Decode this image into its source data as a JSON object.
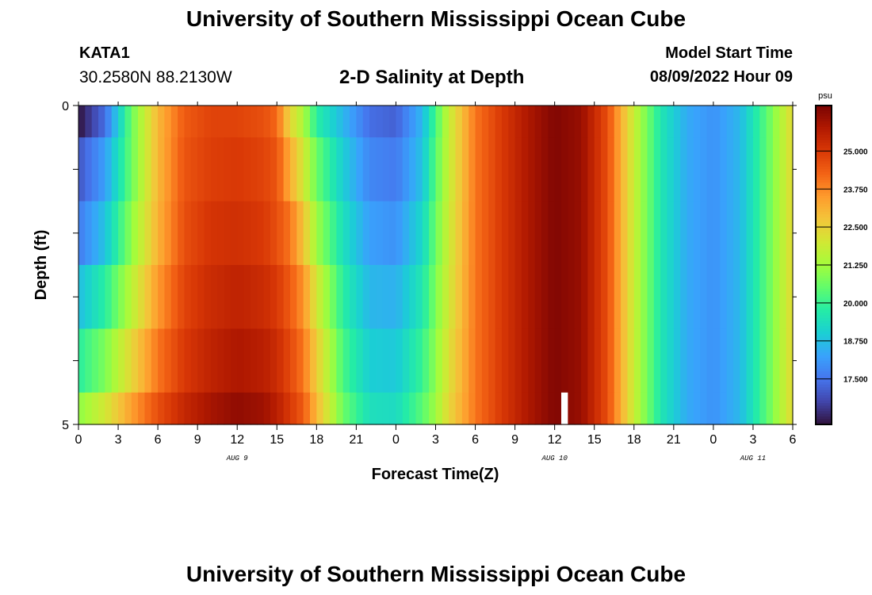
{
  "header": {
    "title": "University of Southern Mississippi Ocean Cube",
    "station": "KATA1",
    "coords": "30.2580N  88.2130W",
    "subtitle": "2-D Salinity at Depth",
    "model_start_label": "Model Start Time",
    "model_start_value": "08/09/2022 Hour 09"
  },
  "footer": {
    "title": "University of Southern Mississippi Ocean Cube"
  },
  "chart_data": {
    "type": "heatmap",
    "title": "2-D Salinity at Depth",
    "xlabel": "Forecast Time(Z)",
    "ylabel": "Depth (ft)",
    "x_range_hours": [
      0,
      54
    ],
    "x_tick_labels": [
      "0",
      "3",
      "6",
      "9",
      "12",
      "15",
      "18",
      "21",
      "0",
      "3",
      "6",
      "9",
      "12",
      "15",
      "18",
      "21",
      "0",
      "3",
      "6"
    ],
    "x_day_labels": [
      {
        "label": "AUG 9",
        "at_hour": 12
      },
      {
        "label": "AUG 10",
        "at_hour": 36
      },
      {
        "label": "AUG 11",
        "at_hour": 51
      }
    ],
    "y_range": [
      0,
      5
    ],
    "y_tick_labels": [
      "0",
      "5"
    ],
    "depth_layers": [
      {
        "from": 0,
        "to": 0.5
      },
      {
        "from": 0.5,
        "to": 1.5
      },
      {
        "from": 1.5,
        "to": 2.5
      },
      {
        "from": 2.5,
        "to": 3.5
      },
      {
        "from": 3.5,
        "to": 4.5
      },
      {
        "from": 4.5,
        "to": 5
      }
    ],
    "salinity_keyframes": [
      {
        "hour": 0,
        "layers": [
          16.0,
          17.0,
          17.6,
          18.7,
          19.8,
          21.0
        ]
      },
      {
        "hour": 2,
        "layers": [
          17.4,
          18.2,
          18.8,
          19.8,
          20.8,
          22.0
        ]
      },
      {
        "hour": 4,
        "layers": [
          20.6,
          20.6,
          21.0,
          21.6,
          22.4,
          23.4
        ]
      },
      {
        "hour": 6,
        "layers": [
          23.0,
          23.0,
          23.1,
          23.5,
          24.0,
          24.6
        ]
      },
      {
        "hour": 8,
        "layers": [
          24.4,
          24.5,
          24.6,
          24.8,
          25.0,
          25.4
        ]
      },
      {
        "hour": 10,
        "layers": [
          24.8,
          24.9,
          25.1,
          25.3,
          25.5,
          25.9
        ]
      },
      {
        "hour": 12,
        "layers": [
          24.8,
          25.0,
          25.2,
          25.5,
          25.8,
          26.2
        ]
      },
      {
        "hour": 14,
        "layers": [
          24.6,
          24.8,
          25.0,
          25.3,
          25.6,
          26.0
        ]
      },
      {
        "hour": 15,
        "layers": [
          24.2,
          24.5,
          24.6,
          25.0,
          25.3,
          25.6
        ]
      },
      {
        "hour": 16,
        "layers": [
          22.4,
          23.2,
          24.0,
          24.4,
          24.7,
          25.0
        ]
      },
      {
        "hour": 17,
        "layers": [
          21.4,
          22.0,
          22.8,
          23.6,
          24.0,
          24.4
        ]
      },
      {
        "hour": 18,
        "layers": [
          19.8,
          20.6,
          21.2,
          22.0,
          22.6,
          23.0
        ]
      },
      {
        "hour": 20,
        "layers": [
          18.6,
          19.0,
          19.4,
          19.8,
          20.2,
          20.6
        ]
      },
      {
        "hour": 22,
        "layers": [
          17.4,
          17.8,
          18.2,
          18.6,
          19.0,
          19.4
        ]
      },
      {
        "hour": 24,
        "layers": [
          17.2,
          17.6,
          18.0,
          18.5,
          18.9,
          19.3
        ]
      },
      {
        "hour": 26,
        "layers": [
          18.6,
          18.8,
          19.2,
          19.6,
          20.0,
          20.4
        ]
      },
      {
        "hour": 27,
        "layers": [
          20.2,
          20.4,
          20.6,
          20.8,
          21.0,
          21.2
        ]
      },
      {
        "hour": 28,
        "layers": [
          21.8,
          21.8,
          21.9,
          22.0,
          22.2,
          22.4
        ]
      },
      {
        "hour": 30,
        "layers": [
          24.0,
          24.0,
          24.0,
          24.0,
          24.0,
          24.0
        ]
      },
      {
        "hour": 32,
        "layers": [
          25.0,
          25.0,
          25.0,
          25.0,
          25.0,
          25.0
        ]
      },
      {
        "hour": 34,
        "layers": [
          25.8,
          25.8,
          25.8,
          25.8,
          25.8,
          25.8
        ]
      },
      {
        "hour": 36,
        "layers": [
          26.4,
          26.4,
          26.4,
          26.4,
          26.4,
          26.4
        ]
      },
      {
        "hour": 38,
        "layers": [
          26.1,
          26.1,
          26.1,
          26.1,
          26.1,
          26.1
        ]
      },
      {
        "hour": 40,
        "layers": [
          24.6,
          24.6,
          24.6,
          24.6,
          24.6,
          24.6
        ]
      },
      {
        "hour": 42,
        "layers": [
          21.8,
          21.8,
          21.8,
          21.8,
          21.8,
          21.8
        ]
      },
      {
        "hour": 44,
        "layers": [
          19.6,
          19.6,
          19.6,
          19.6,
          19.6,
          19.6
        ]
      },
      {
        "hour": 46,
        "layers": [
          18.4,
          18.4,
          18.4,
          18.4,
          18.4,
          18.4
        ]
      },
      {
        "hour": 48,
        "layers": [
          18.0,
          18.0,
          18.0,
          18.0,
          18.0,
          18.0
        ]
      },
      {
        "hour": 50,
        "layers": [
          18.6,
          18.6,
          18.6,
          18.6,
          18.6,
          18.6
        ]
      },
      {
        "hour": 52,
        "layers": [
          20.4,
          20.4,
          20.4,
          20.4,
          20.4,
          20.4
        ]
      },
      {
        "hour": 54,
        "layers": [
          22.4,
          22.4,
          22.4,
          22.4,
          22.4,
          22.4
        ]
      }
    ],
    "missing_data": {
      "hour_from": 36.5,
      "hour_to": 37.0,
      "depth_from": 4.5,
      "depth_to": 5
    },
    "colorbar": {
      "unit": "psu",
      "range": [
        16.0,
        26.5
      ],
      "tick_labels": [
        "25.000",
        "23.750",
        "22.500",
        "21.250",
        "20.000",
        "18.750",
        "17.500"
      ],
      "colormap": [
        "#30123b",
        "#4145ab",
        "#4675ed",
        "#39a2fc",
        "#1bcfd4",
        "#24eca6",
        "#61fc6c",
        "#a4fc3b",
        "#d1e834",
        "#f3c63a",
        "#fe9b2d",
        "#f36315",
        "#d93806",
        "#b11901",
        "#7a0403"
      ]
    },
    "grid": false
  }
}
